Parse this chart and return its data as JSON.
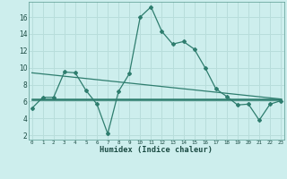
{
  "xlabel": "Humidex (Indice chaleur)",
  "x": [
    0,
    1,
    2,
    3,
    4,
    5,
    6,
    7,
    8,
    9,
    10,
    11,
    12,
    13,
    14,
    15,
    16,
    17,
    18,
    19,
    20,
    21,
    22,
    23
  ],
  "line1": [
    5.2,
    6.5,
    6.5,
    9.5,
    9.4,
    7.3,
    5.7,
    2.2,
    7.2,
    9.3,
    16.0,
    17.2,
    14.3,
    12.8,
    13.1,
    12.2,
    10.0,
    7.5,
    6.6,
    5.6,
    5.7,
    3.8,
    5.7,
    6.1
  ],
  "line2_x": [
    0,
    23
  ],
  "line2_y": [
    9.4,
    6.3
  ],
  "line3_x": [
    0,
    23
  ],
  "line3_y": [
    6.3,
    6.3
  ],
  "bg_color": "#cdeeed",
  "grid_color": "#b8dddb",
  "line_color": "#2e7d6e",
  "ylim": [
    1.5,
    17.8
  ],
  "yticks": [
    2,
    4,
    6,
    8,
    10,
    12,
    14,
    16
  ],
  "xlim": [
    -0.3,
    23.3
  ],
  "xticks": [
    0,
    1,
    2,
    3,
    4,
    5,
    6,
    7,
    8,
    9,
    10,
    11,
    12,
    13,
    14,
    15,
    16,
    17,
    18,
    19,
    20,
    21,
    22,
    23
  ]
}
